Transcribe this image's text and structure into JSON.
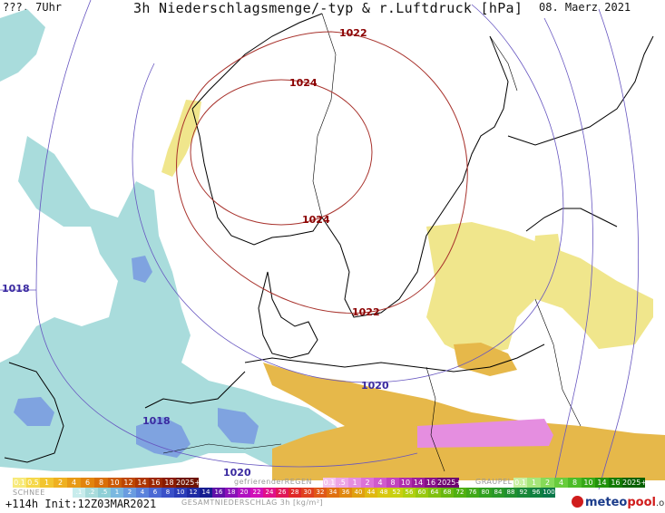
{
  "header": {
    "left": "???, 7Uhr",
    "title": "3h Niederschlagsmenge/-typ & r.Luftdruck [hPa]",
    "date": "08. Maerz 2021"
  },
  "isobars": {
    "labels": [
      {
        "text": "1022",
        "color": "red"
      },
      {
        "text": "1024",
        "color": "red"
      },
      {
        "text": "1024",
        "color": "red"
      },
      {
        "text": "1022",
        "color": "red"
      },
      {
        "text": "1018",
        "color": "blue"
      },
      {
        "text": "1020",
        "color": "blue"
      },
      {
        "text": "1018",
        "color": "blue"
      },
      {
        "text": "1020",
        "color": "blue"
      }
    ]
  },
  "legend": {
    "rain_label": "gefrierenderREGEN",
    "graupel_label": "GRAUPEL",
    "snow_label": "SCHNEE",
    "total_label": "GESAMTNIEDERSCHLAG 3h [kg/m²]",
    "row1_yellow": [
      "0.1",
      "0.5",
      "1",
      "2",
      "4",
      "6",
      "8",
      "10",
      "12",
      "14",
      "16",
      "18",
      "2025+"
    ],
    "row1_pink": [
      "0.1",
      ".5",
      "1",
      "2",
      "4",
      "8",
      "10",
      "14",
      "16",
      "2025+"
    ],
    "row1_green": [
      "0.1",
      "1",
      "2",
      "4",
      "8",
      "10",
      "14",
      "16",
      "2025+"
    ],
    "row2": [
      ".1",
      ".2",
      ".5",
      "1",
      "2",
      "4",
      "6",
      "8",
      "10",
      "12",
      "14",
      "16",
      "18",
      "20",
      "22",
      "24",
      "26",
      "28",
      "30",
      "32",
      "34",
      "36",
      "40",
      "44",
      "48",
      "52",
      "56",
      "60",
      "64",
      "68",
      "72",
      "76",
      "80",
      "84",
      "88",
      "92",
      "96",
      "100"
    ]
  },
  "footer": {
    "run": "+114h Init:12Z03MAR2021",
    "logo_brand": "meteo",
    "logo_brand2": "pool",
    "logo_tld": ".org"
  },
  "colors": {
    "snow": "#a9dcdc",
    "snow_heavy": "#7fa3e0",
    "rain_light": "#f0e68c",
    "rain": "#e6b84a",
    "freezing": "#e58ee0",
    "isobar_high": "#a8322c",
    "isobar_low": "#6655c0"
  }
}
